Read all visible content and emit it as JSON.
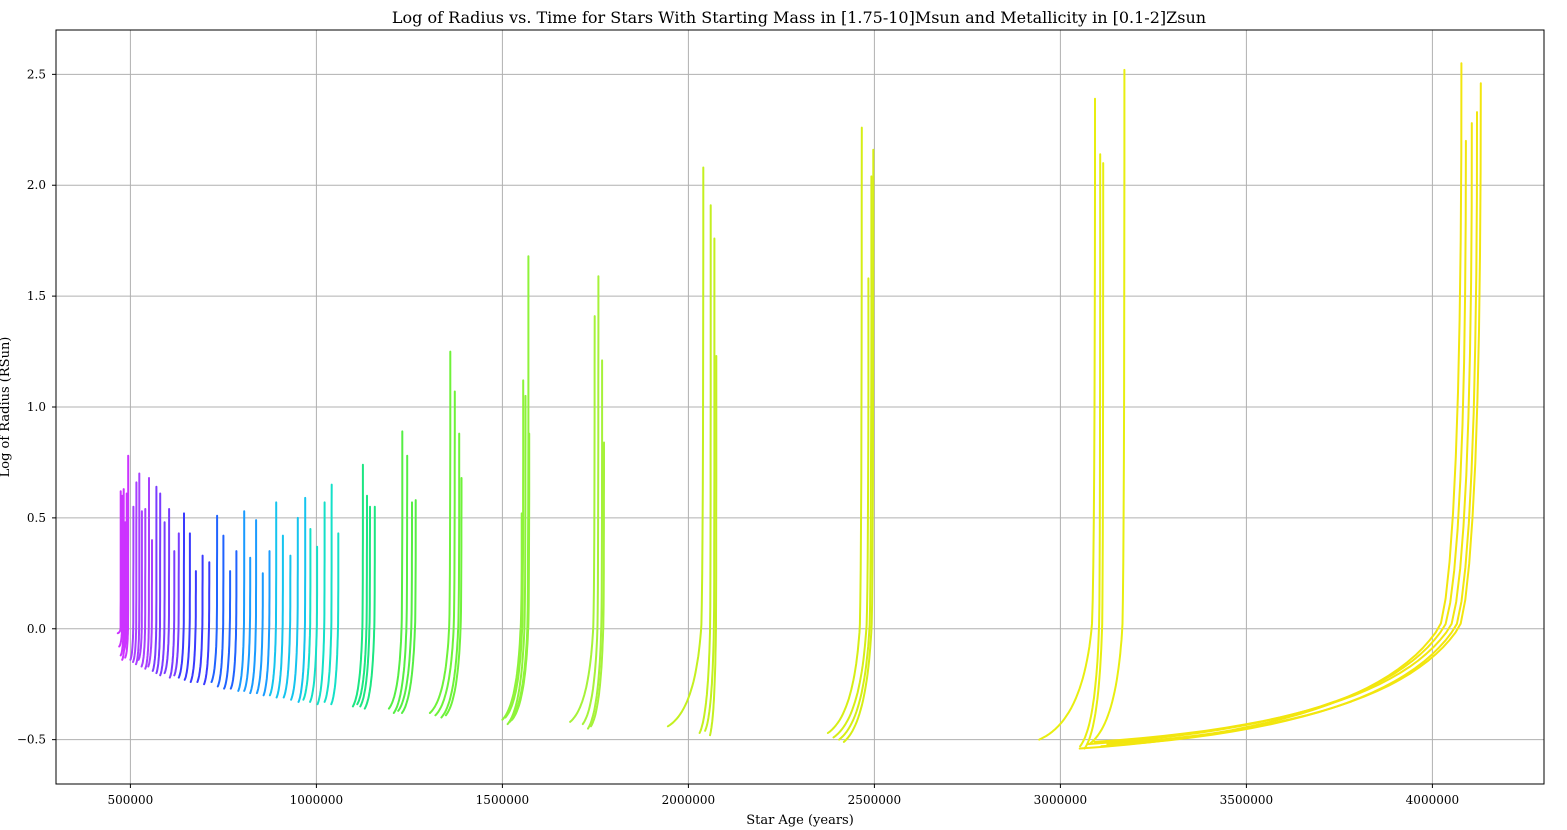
{
  "chart_data": {
    "type": "line",
    "title": "Log of Radius vs. Time for Stars With Starting Mass in [1.75-10]Msun and Metallicity in [0.1-2]Zsun",
    "xlabel": "Star Age (years)",
    "ylabel": "Log of Radius (RSun)",
    "xlim": [
      300000,
      4300000
    ],
    "ylim": [
      -0.7,
      2.7
    ],
    "xticks": [
      500000,
      1000000,
      1500000,
      2000000,
      2500000,
      3000000,
      3500000,
      4000000
    ],
    "xtick_labels": [
      "500000",
      "1000000",
      "1500000",
      "2000000",
      "2500000",
      "3000000",
      "3500000",
      "4000000"
    ],
    "yticks": [
      -0.5,
      0.0,
      0.5,
      1.0,
      1.5,
      2.0,
      2.5
    ],
    "ytick_labels": [
      "−0.5",
      "0.0",
      "0.5",
      "1.0",
      "1.5",
      "2.0",
      "2.5"
    ],
    "grid": true,
    "legend": "none",
    "colormap": "gist_rainbow (magenta → blue → cyan → green → yellow)",
    "track_shape": "each track starts at its start point, rises slowly to about 0.0, then shoots up steeply to its end radius",
    "groups": [
      {
        "color": "#cc33ff",
        "tracks": [
          [
            466000,
            -0.02,
            474000,
            0.62
          ],
          [
            470000,
            -0.08,
            478000,
            0.6
          ],
          [
            474000,
            -0.12,
            482000,
            0.63
          ],
          [
            478000,
            -0.14,
            486000,
            0.48
          ],
          [
            482000,
            -0.1,
            490000,
            0.61
          ],
          [
            486000,
            -0.13,
            494000,
            0.78
          ]
        ]
      },
      {
        "color": "#a840ff",
        "tracks": [
          [
            500000,
            -0.14,
            508000,
            0.55
          ],
          [
            507000,
            -0.15,
            516000,
            0.66
          ],
          [
            515000,
            -0.16,
            524000,
            0.7
          ],
          [
            522000,
            -0.14,
            531000,
            0.53
          ],
          [
            530000,
            -0.17,
            540000,
            0.54
          ],
          [
            540000,
            -0.18,
            550000,
            0.68
          ],
          [
            548000,
            -0.17,
            558000,
            0.4
          ]
        ]
      },
      {
        "color": "#7a3cff",
        "tracks": [
          [
            560000,
            -0.19,
            570000,
            0.64
          ],
          [
            570000,
            -0.2,
            580000,
            0.61
          ],
          [
            580000,
            -0.21,
            592000,
            0.48
          ],
          [
            592000,
            -0.2,
            604000,
            0.54
          ],
          [
            606000,
            -0.22,
            618000,
            0.35
          ],
          [
            618000,
            -0.21,
            630000,
            0.43
          ]
        ]
      },
      {
        "color": "#3a3aff",
        "tracks": [
          [
            630000,
            -0.22,
            644000,
            0.52
          ],
          [
            646000,
            -0.23,
            660000,
            0.43
          ],
          [
            662000,
            -0.24,
            676000,
            0.26
          ],
          [
            680000,
            -0.24,
            694000,
            0.33
          ],
          [
            698000,
            -0.25,
            712000,
            0.3
          ]
        ]
      },
      {
        "color": "#2063ff",
        "tracks": [
          [
            718000,
            -0.24,
            733000,
            0.51
          ],
          [
            735000,
            -0.26,
            750000,
            0.42
          ],
          [
            752000,
            -0.27,
            768000,
            0.26
          ],
          [
            770000,
            -0.27,
            785000,
            0.35
          ]
        ]
      },
      {
        "color": "#1a9bff",
        "tracks": [
          [
            790000,
            -0.28,
            806000,
            0.53
          ],
          [
            806000,
            -0.28,
            822000,
            0.32
          ],
          [
            822000,
            -0.29,
            838000,
            0.49
          ],
          [
            840000,
            -0.29,
            856000,
            0.25
          ],
          [
            858000,
            -0.3,
            874000,
            0.35
          ]
        ]
      },
      {
        "color": "#15c4ee",
        "tracks": [
          [
            875000,
            -0.3,
            892000,
            0.57
          ],
          [
            893000,
            -0.31,
            910000,
            0.42
          ],
          [
            912000,
            -0.31,
            930000,
            0.33
          ],
          [
            932000,
            -0.32,
            950000,
            0.5
          ],
          [
            952000,
            -0.33,
            970000,
            0.59
          ]
        ]
      },
      {
        "color": "#14e0c8",
        "tracks": [
          [
            965000,
            -0.32,
            984000,
            0.45
          ],
          [
            983000,
            -0.33,
            1002000,
            0.37
          ],
          [
            1003000,
            -0.34,
            1022000,
            0.57
          ],
          [
            1022000,
            -0.33,
            1041000,
            0.65
          ],
          [
            1040000,
            -0.34,
            1059000,
            0.43
          ]
        ]
      },
      {
        "color": "#1ce682",
        "tracks": [
          [
            1098000,
            -0.35,
            1125000,
            0.74
          ],
          [
            1110000,
            -0.34,
            1136000,
            0.6
          ],
          [
            1118000,
            -0.35,
            1144000,
            0.55
          ],
          [
            1130000,
            -0.36,
            1157000,
            0.55
          ]
        ]
      },
      {
        "color": "#55ee44",
        "tracks": [
          [
            1195000,
            -0.36,
            1231000,
            0.89
          ],
          [
            1208000,
            -0.38,
            1244000,
            0.78
          ],
          [
            1220000,
            -0.37,
            1257000,
            0.57
          ],
          [
            1230000,
            -0.38,
            1267000,
            0.58
          ]
        ]
      },
      {
        "color": "#6ef23a",
        "tracks": [
          [
            1305000,
            -0.38,
            1360000,
            1.25
          ],
          [
            1320000,
            -0.39,
            1372000,
            1.07
          ],
          [
            1336000,
            -0.4,
            1384000,
            0.88
          ],
          [
            1348000,
            -0.39,
            1390000,
            0.68
          ]
        ]
      },
      {
        "color": "#8ef33a",
        "tracks": [
          [
            1500000,
            -0.41,
            1552000,
            0.52
          ],
          [
            1508000,
            -0.4,
            1556000,
            1.12
          ],
          [
            1514000,
            -0.43,
            1562000,
            1.05
          ],
          [
            1520000,
            -0.42,
            1570000,
            1.68
          ],
          [
            1526000,
            -0.41,
            1572000,
            0.88
          ]
        ]
      },
      {
        "color": "#a6f23a",
        "tracks": [
          [
            1682000,
            -0.42,
            1748000,
            1.41
          ],
          [
            1716000,
            -0.43,
            1758000,
            1.59
          ],
          [
            1730000,
            -0.45,
            1768000,
            1.21
          ],
          [
            1738000,
            -0.44,
            1773000,
            0.84
          ]
        ]
      },
      {
        "color": "#c4f020",
        "tracks": [
          [
            1945000,
            -0.44,
            2040000,
            2.08
          ],
          [
            2030000,
            -0.47,
            2060000,
            1.91
          ],
          [
            2045000,
            -0.46,
            2070000,
            1.76
          ],
          [
            2058000,
            -0.48,
            2075000,
            1.23
          ]
        ]
      },
      {
        "color": "#d6ee15",
        "tracks": [
          [
            2375000,
            -0.47,
            2466000,
            2.26
          ],
          [
            2390000,
            -0.49,
            2484000,
            1.58
          ],
          [
            2405000,
            -0.5,
            2492000,
            2.04
          ],
          [
            2418000,
            -0.51,
            2497000,
            2.16
          ]
        ]
      },
      {
        "color": "#e8ee10",
        "tracks": [
          [
            2943000,
            -0.5,
            3093000,
            2.39
          ],
          [
            3053000,
            -0.53,
            3107000,
            2.14
          ],
          [
            3065000,
            -0.54,
            3115000,
            2.1
          ],
          [
            3078000,
            -0.52,
            3172000,
            2.52
          ]
        ]
      },
      {
        "color": "#f2e60e",
        "tracks": [
          [
            3052000,
            -0.54,
            4078000,
            2.55
          ],
          [
            3074000,
            -0.52,
            4090000,
            2.2
          ],
          [
            3092000,
            -0.51,
            4106000,
            2.28
          ],
          [
            3110000,
            -0.53,
            4120000,
            2.33
          ],
          [
            3126000,
            -0.52,
            4130000,
            2.46
          ]
        ]
      }
    ]
  }
}
